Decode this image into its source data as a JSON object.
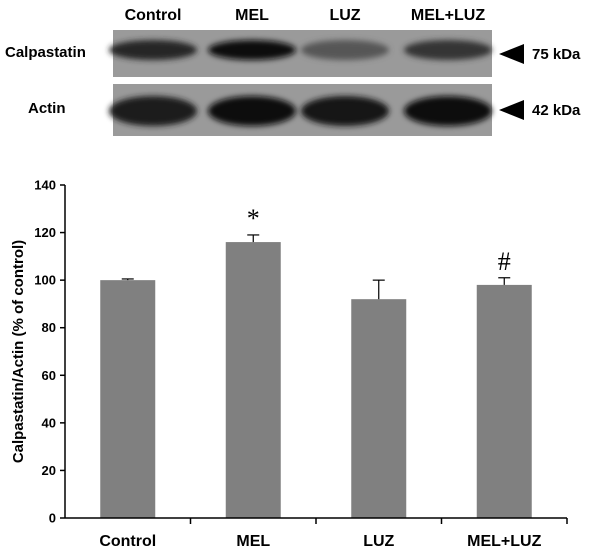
{
  "blot": {
    "lanes": [
      "Control",
      "MEL",
      "LUZ",
      "MEL+LUZ"
    ],
    "rows": [
      {
        "label": "Calpastatin",
        "marker": "75 kDa",
        "band_intensity": [
          0.8,
          0.95,
          0.45,
          0.7
        ]
      },
      {
        "label": "Actin",
        "marker": "42 kDa",
        "band_intensity": [
          0.85,
          0.95,
          0.9,
          1.0
        ]
      }
    ]
  },
  "chart_data": {
    "type": "bar",
    "categories": [
      "Control",
      "MEL",
      "LUZ",
      "MEL+LUZ"
    ],
    "values": [
      100,
      116,
      92,
      98
    ],
    "errors": [
      0.5,
      3,
      8,
      3
    ],
    "annotations": [
      "",
      "*",
      "",
      "#"
    ],
    "xlabel": "",
    "ylabel": "Calpastatin/Actin (% of control)",
    "ylim": [
      0,
      140
    ],
    "yticks": [
      "0",
      "20",
      "40",
      "60",
      "80",
      "100",
      "120",
      "140"
    ],
    "grid": false,
    "bar_color": "#808080"
  }
}
